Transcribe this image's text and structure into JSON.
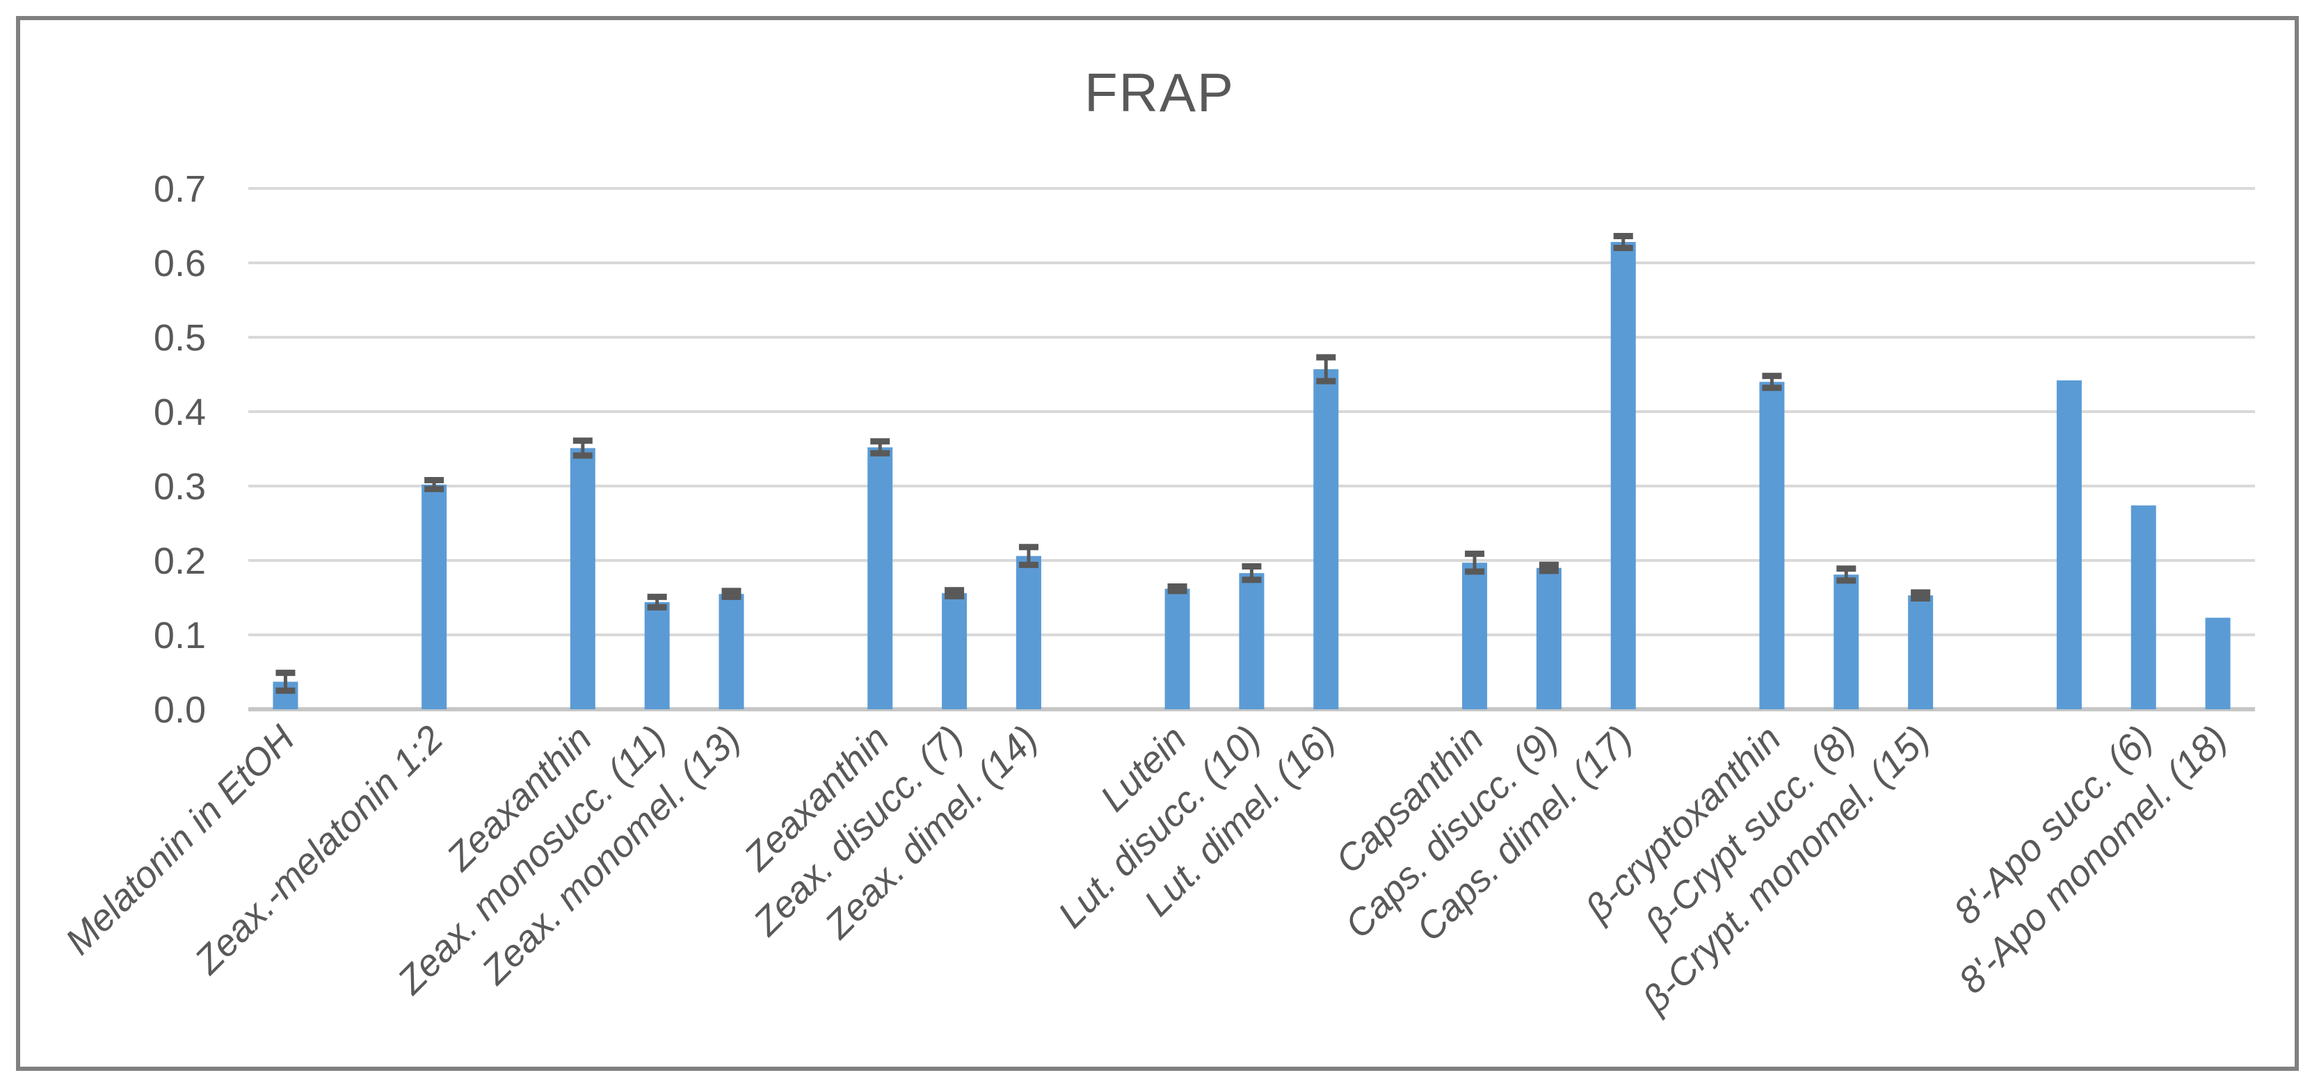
{
  "chart_data": {
    "type": "bar",
    "title": "FRAP",
    "xlabel": "",
    "ylabel": "",
    "ylim": [
      0,
      0.7
    ],
    "y_tick_step": 0.1,
    "y_tick_labels": [
      "0.0",
      "0.1",
      "0.2",
      "0.3",
      "0.4",
      "0.5",
      "0.6",
      "0.7"
    ],
    "grid": "horizontal",
    "legend": "none",
    "n_category_slots": 27,
    "bars": [
      {
        "slot": 1,
        "label": "Melatonin in EtOH",
        "value": 0.037,
        "error": 0.012
      },
      {
        "slot": 3,
        "label": "Zeax.-melatonin 1:2",
        "value": 0.302,
        "error": 0.006
      },
      {
        "slot": 5,
        "label": "Zeaxanthin",
        "value": 0.351,
        "error": 0.01
      },
      {
        "slot": 6,
        "label": "Zeax. monosucc. (11)",
        "value": 0.144,
        "error": 0.007
      },
      {
        "slot": 7,
        "label": "Zeax. monomel. (13)",
        "value": 0.155,
        "error": 0.004
      },
      {
        "slot": 9,
        "label": "Zeaxanthin",
        "value": 0.352,
        "error": 0.008
      },
      {
        "slot": 10,
        "label": "Zeax. disucc. (7)",
        "value": 0.156,
        "error": 0.004
      },
      {
        "slot": 11,
        "label": "Zeax. dimel. (14)",
        "value": 0.206,
        "error": 0.012
      },
      {
        "slot": 13,
        "label": "Lutein",
        "value": 0.162,
        "error": 0.003
      },
      {
        "slot": 14,
        "label": "Lut. disucc. (10)",
        "value": 0.183,
        "error": 0.009
      },
      {
        "slot": 15,
        "label": "Lut. dimel. (16)",
        "value": 0.457,
        "error": 0.016
      },
      {
        "slot": 17,
        "label": "Capsanthin",
        "value": 0.197,
        "error": 0.012
      },
      {
        "slot": 18,
        "label": "Caps. disucc. (9)",
        "value": 0.19,
        "error": 0.004
      },
      {
        "slot": 19,
        "label": "Caps. dimel. (17)",
        "value": 0.628,
        "error": 0.008
      },
      {
        "slot": 21,
        "label": "β-cryptoxanthin",
        "value": 0.44,
        "error": 0.008
      },
      {
        "slot": 22,
        "label": "β-Crypt succ. (8)",
        "value": 0.181,
        "error": 0.008
      },
      {
        "slot": 23,
        "label": "β-Crypt. monomel. (15)",
        "value": 0.153,
        "error": 0.004
      },
      {
        "slot": 25,
        "label": "",
        "value": 0.442,
        "error": null
      },
      {
        "slot": 26,
        "label": "8'-Apo succ. (6)",
        "value": 0.274,
        "error": null
      },
      {
        "slot": 27,
        "label": "8'-Apo monomel. (18)",
        "value": 0.123,
        "error": null
      }
    ]
  },
  "colors": {
    "bar": "#5B9BD5",
    "error_bar": "#595959",
    "gridline": "#D9D9D9",
    "axis_line": "#C6C6C6",
    "tick_text": "#595959",
    "title_text": "#595959",
    "frame_border": "#808080",
    "background": "#FFFFFF"
  }
}
